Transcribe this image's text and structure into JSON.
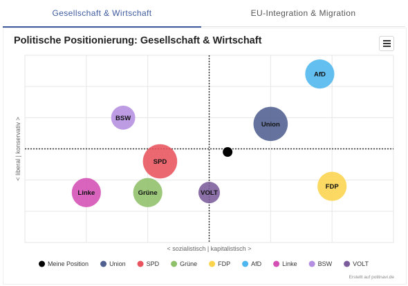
{
  "tabs": [
    {
      "label": "Gesellschaft & Wirtschaft",
      "active": true
    },
    {
      "label": "EU-Integration & Migration",
      "active": false
    }
  ],
  "chart_title": "Politische Positionierung: Gesellschaft & Wirtschaft",
  "menu_icon": "hamburger-menu-icon",
  "credit": "Erstellt auf politnavi.de",
  "chart_data": {
    "type": "scatter",
    "xlabel": "< sozialistisch | kapitalistisch >",
    "ylabel": "< liberal | konservativ >",
    "xlim": [
      -3,
      3
    ],
    "ylim": [
      -3,
      3
    ],
    "grid": true,
    "legend_position": "bottom",
    "points": [
      {
        "name": "Meine Position",
        "x": 0.3,
        "y": -0.1,
        "color": "#000000",
        "size": 1,
        "show_label": false
      },
      {
        "name": "Union",
        "x": 1.0,
        "y": 0.8,
        "color": "#4f5f8f",
        "size": 4,
        "show_label": true
      },
      {
        "name": "SPD",
        "x": -0.8,
        "y": -0.4,
        "color": "#e8535d",
        "size": 4,
        "show_label": true
      },
      {
        "name": "Grüne",
        "x": -1.0,
        "y": -1.4,
        "color": "#8fc06a",
        "size": 3,
        "show_label": true
      },
      {
        "name": "FDP",
        "x": 2.0,
        "y": -1.2,
        "color": "#fbd44c",
        "size": 3,
        "show_label": true
      },
      {
        "name": "AfD",
        "x": 1.8,
        "y": 2.4,
        "color": "#4db6ee",
        "size": 3,
        "show_label": true
      },
      {
        "name": "Linke",
        "x": -2.0,
        "y": -1.4,
        "color": "#d44fb4",
        "size": 3,
        "show_label": true
      },
      {
        "name": "BSW",
        "x": -1.4,
        "y": 1.0,
        "color": "#b48ee0",
        "size": 2,
        "show_label": true
      },
      {
        "name": "VOLT",
        "x": 0.0,
        "y": -1.4,
        "color": "#7b5c9c",
        "size": 1.5,
        "show_label": true
      }
    ]
  }
}
